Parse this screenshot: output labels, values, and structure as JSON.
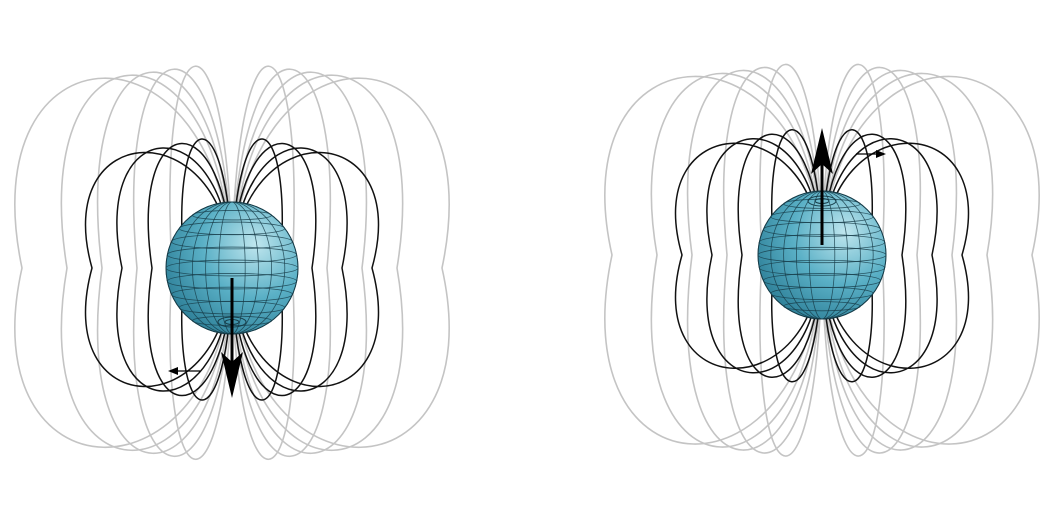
{
  "colors": {
    "background": "#ffffff",
    "sphere_light": "#bfe6ee",
    "sphere_mid": "#5ab0c6",
    "sphere_dark": "#1f6f88",
    "sphere_grid": "#163c48",
    "field_line_front": "#111111",
    "field_line_back": "#c4c4c4",
    "arrow": "#000000"
  },
  "diagrams": [
    {
      "id": "left",
      "moment_direction": "down",
      "circulation_arrow_direction": "left"
    },
    {
      "id": "right",
      "moment_direction": "up",
      "circulation_arrow_direction": "right"
    }
  ]
}
